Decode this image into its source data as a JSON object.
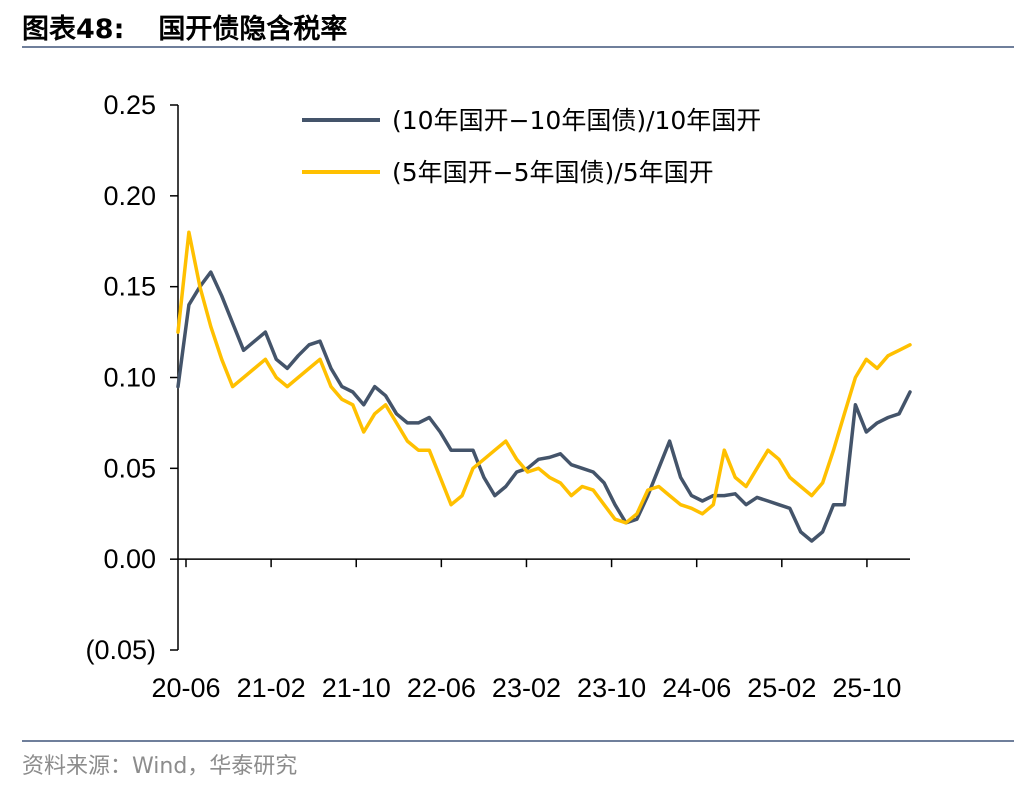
{
  "header": {
    "label": "图表48:",
    "title": "国开债隐含税率"
  },
  "footer": {
    "source": "资料来源：Wind，华泰研究"
  },
  "colors": {
    "series_10y": "#44546a",
    "series_5y": "#ffc000",
    "rule": "#6f7f9b"
  },
  "chart_data": {
    "type": "line",
    "title": "国开债隐含税率",
    "xlabel": "",
    "ylabel": "",
    "ylim": [
      -0.05,
      0.25
    ],
    "x_tick_labels": [
      "20-06",
      "21-02",
      "21-10",
      "22-06",
      "23-02",
      "23-10",
      "24-06",
      "25-02",
      "25-10"
    ],
    "y_tick_labels": [
      "(0.05)",
      "0.00",
      "0.05",
      "0.10",
      "0.15",
      "0.20",
      "0.25"
    ],
    "y_ticks": [
      -0.05,
      0,
      0.05,
      0.1,
      0.15,
      0.2,
      0.25
    ],
    "legend_position": "top-right",
    "x": [
      "2020-06",
      "2020-07",
      "2020-08",
      "2020-09",
      "2020-10",
      "2020-11",
      "2020-12",
      "2021-01",
      "2021-02",
      "2021-03",
      "2021-04",
      "2021-05",
      "2021-06",
      "2021-07",
      "2021-08",
      "2021-09",
      "2021-10",
      "2021-11",
      "2021-12",
      "2022-01",
      "2022-02",
      "2022-03",
      "2022-04",
      "2022-05",
      "2022-06",
      "2022-07",
      "2022-08",
      "2022-09",
      "2022-10",
      "2022-11",
      "2022-12",
      "2023-01",
      "2023-02",
      "2023-03",
      "2023-04",
      "2023-05",
      "2023-06",
      "2023-07",
      "2023-08",
      "2023-09",
      "2023-10",
      "2023-11",
      "2023-12",
      "2024-01",
      "2024-02",
      "2024-03",
      "2024-04",
      "2024-05",
      "2024-06",
      "2024-07",
      "2024-08",
      "2024-09",
      "2024-10",
      "2024-11",
      "2024-12",
      "2025-01",
      "2025-02",
      "2025-03",
      "2025-04",
      "2025-05",
      "2025-06",
      "2025-07",
      "2025-08",
      "2025-09",
      "2025-10",
      "2025-11",
      "2025-12",
      "2026-01"
    ],
    "series": [
      {
        "name": "(10年国开−10年国债)/10年国开",
        "values": [
          0.095,
          0.14,
          0.15,
          0.158,
          0.145,
          0.13,
          0.115,
          0.12,
          0.125,
          0.11,
          0.105,
          0.112,
          0.118,
          0.12,
          0.105,
          0.095,
          0.092,
          0.085,
          0.095,
          0.09,
          0.08,
          0.075,
          0.075,
          0.078,
          0.07,
          0.06,
          0.06,
          0.06,
          0.045,
          0.035,
          0.04,
          0.048,
          0.05,
          0.055,
          0.056,
          0.058,
          0.052,
          0.05,
          0.048,
          0.042,
          0.03,
          0.02,
          0.022,
          0.035,
          0.05,
          0.065,
          0.045,
          0.035,
          0.032,
          0.035,
          0.035,
          0.036,
          0.03,
          0.034,
          0.032,
          0.03,
          0.028,
          0.015,
          0.01,
          0.015,
          0.03,
          0.03,
          0.085,
          0.07,
          0.075,
          0.078,
          0.08,
          0.092
        ]
      },
      {
        "name": "(5年国开−5年国债)/5年国开",
        "values": [
          0.125,
          0.18,
          0.15,
          0.128,
          0.11,
          0.095,
          0.1,
          0.105,
          0.11,
          0.1,
          0.095,
          0.1,
          0.105,
          0.11,
          0.095,
          0.088,
          0.085,
          0.07,
          0.08,
          0.085,
          0.075,
          0.065,
          0.06,
          0.06,
          0.045,
          0.03,
          0.035,
          0.05,
          0.055,
          0.06,
          0.065,
          0.055,
          0.048,
          0.05,
          0.045,
          0.042,
          0.035,
          0.04,
          0.038,
          0.03,
          0.022,
          0.02,
          0.025,
          0.038,
          0.04,
          0.035,
          0.03,
          0.028,
          0.025,
          0.03,
          0.06,
          0.045,
          0.04,
          0.05,
          0.06,
          0.055,
          0.045,
          0.04,
          0.035,
          0.042,
          0.06,
          0.08,
          0.1,
          0.11,
          0.105,
          0.112,
          0.115,
          0.118
        ]
      }
    ]
  }
}
